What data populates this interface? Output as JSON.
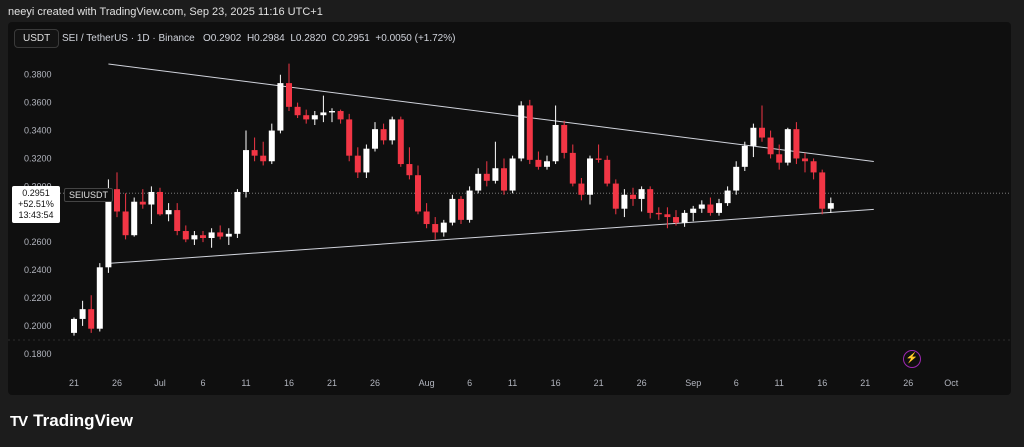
{
  "header": {
    "attribution": "neeyi created with TradingView.com, Sep 23, 2025 11:16 UTC+1"
  },
  "toolbar": {
    "unit_label": "USDT"
  },
  "legend": {
    "symbol": "SEI / TetherUS · 1D · Binance",
    "open": "O0.2902",
    "high": "H0.2984",
    "low": "L0.2820",
    "close": "C0.2951",
    "change": "+0.0050 (+1.72%)"
  },
  "price_tag": {
    "price": "0.2951",
    "pct": "+52.51%",
    "countdown": "13:43:54",
    "symbol": "SEIUSDT"
  },
  "brand": {
    "name": "TradingView",
    "logo": "TV"
  },
  "colors": {
    "up": "#ffffff",
    "down": "#f23645",
    "background": "#0f0f0f",
    "alert": "#9c27b0"
  },
  "chart_data": {
    "type": "candlestick",
    "title": "SEI / TetherUS · 1D · Binance",
    "y_ticks": [
      "0.3800",
      "0.3600",
      "0.3400",
      "0.3200",
      "0.3000",
      "0.2800",
      "0.2600",
      "0.2400",
      "0.2200",
      "0.2000",
      "0.1800"
    ],
    "ylim": [
      0.177,
      0.392
    ],
    "x_ticks": [
      {
        "label": "21",
        "idx": 0
      },
      {
        "label": "26",
        "idx": 5
      },
      {
        "label": "Jul",
        "idx": 10
      },
      {
        "label": "6",
        "idx": 15
      },
      {
        "label": "11",
        "idx": 20
      },
      {
        "label": "16",
        "idx": 25
      },
      {
        "label": "21",
        "idx": 30
      },
      {
        "label": "26",
        "idx": 35
      },
      {
        "label": "Aug",
        "idx": 41
      },
      {
        "label": "6",
        "idx": 46
      },
      {
        "label": "11",
        "idx": 51
      },
      {
        "label": "16",
        "idx": 56
      },
      {
        "label": "21",
        "idx": 61
      },
      {
        "label": "26",
        "idx": 66
      },
      {
        "label": "Sep",
        "idx": 72
      },
      {
        "label": "6",
        "idx": 77
      },
      {
        "label": "11",
        "idx": 82
      },
      {
        "label": "16",
        "idx": 87
      },
      {
        "label": "21",
        "idx": 92
      },
      {
        "label": "26",
        "idx": 97
      },
      {
        "label": "Oct",
        "idx": 102
      }
    ],
    "candles": [
      [
        0.195,
        0.206,
        0.193,
        0.205
      ],
      [
        0.205,
        0.218,
        0.2,
        0.212
      ],
      [
        0.212,
        0.222,
        0.195,
        0.198
      ],
      [
        0.198,
        0.245,
        0.196,
        0.242
      ],
      [
        0.242,
        0.305,
        0.238,
        0.298
      ],
      [
        0.298,
        0.31,
        0.278,
        0.282
      ],
      [
        0.282,
        0.295,
        0.262,
        0.265
      ],
      [
        0.265,
        0.292,
        0.264,
        0.289
      ],
      [
        0.289,
        0.298,
        0.284,
        0.287
      ],
      [
        0.287,
        0.3,
        0.273,
        0.296
      ],
      [
        0.296,
        0.299,
        0.279,
        0.28
      ],
      [
        0.28,
        0.288,
        0.275,
        0.283
      ],
      [
        0.283,
        0.288,
        0.265,
        0.268
      ],
      [
        0.268,
        0.272,
        0.26,
        0.262
      ],
      [
        0.262,
        0.268,
        0.258,
        0.265
      ],
      [
        0.265,
        0.268,
        0.26,
        0.263
      ],
      [
        0.263,
        0.27,
        0.256,
        0.267
      ],
      [
        0.267,
        0.272,
        0.262,
        0.264
      ],
      [
        0.264,
        0.27,
        0.258,
        0.266
      ],
      [
        0.266,
        0.298,
        0.263,
        0.296
      ],
      [
        0.296,
        0.34,
        0.292,
        0.326
      ],
      [
        0.326,
        0.335,
        0.318,
        0.322
      ],
      [
        0.322,
        0.332,
        0.315,
        0.318
      ],
      [
        0.318,
        0.345,
        0.316,
        0.34
      ],
      [
        0.34,
        0.38,
        0.338,
        0.374
      ],
      [
        0.374,
        0.388,
        0.354,
        0.357
      ],
      [
        0.357,
        0.36,
        0.349,
        0.351
      ],
      [
        0.351,
        0.355,
        0.345,
        0.348
      ],
      [
        0.348,
        0.354,
        0.344,
        0.351
      ],
      [
        0.351,
        0.365,
        0.346,
        0.353
      ],
      [
        0.353,
        0.356,
        0.346,
        0.354
      ],
      [
        0.354,
        0.355,
        0.345,
        0.348
      ],
      [
        0.348,
        0.352,
        0.318,
        0.322
      ],
      [
        0.322,
        0.328,
        0.306,
        0.31
      ],
      [
        0.31,
        0.33,
        0.306,
        0.327
      ],
      [
        0.327,
        0.346,
        0.325,
        0.341
      ],
      [
        0.341,
        0.345,
        0.33,
        0.333
      ],
      [
        0.333,
        0.35,
        0.33,
        0.348
      ],
      [
        0.348,
        0.35,
        0.314,
        0.316
      ],
      [
        0.316,
        0.328,
        0.305,
        0.308
      ],
      [
        0.308,
        0.315,
        0.28,
        0.282
      ],
      [
        0.282,
        0.288,
        0.27,
        0.273
      ],
      [
        0.273,
        0.278,
        0.262,
        0.267
      ],
      [
        0.267,
        0.276,
        0.264,
        0.274
      ],
      [
        0.274,
        0.294,
        0.272,
        0.291
      ],
      [
        0.291,
        0.293,
        0.273,
        0.276
      ],
      [
        0.276,
        0.3,
        0.274,
        0.297
      ],
      [
        0.297,
        0.313,
        0.295,
        0.309
      ],
      [
        0.309,
        0.318,
        0.3,
        0.304
      ],
      [
        0.304,
        0.332,
        0.302,
        0.313
      ],
      [
        0.313,
        0.32,
        0.294,
        0.297
      ],
      [
        0.297,
        0.322,
        0.295,
        0.32
      ],
      [
        0.32,
        0.361,
        0.318,
        0.358
      ],
      [
        0.358,
        0.362,
        0.316,
        0.319
      ],
      [
        0.319,
        0.325,
        0.312,
        0.314
      ],
      [
        0.314,
        0.322,
        0.312,
        0.318
      ],
      [
        0.318,
        0.358,
        0.316,
        0.344
      ],
      [
        0.344,
        0.347,
        0.32,
        0.324
      ],
      [
        0.324,
        0.33,
        0.3,
        0.302
      ],
      [
        0.302,
        0.306,
        0.29,
        0.294
      ],
      [
        0.294,
        0.322,
        0.287,
        0.32
      ],
      [
        0.32,
        0.33,
        0.317,
        0.319
      ],
      [
        0.319,
        0.322,
        0.3,
        0.302
      ],
      [
        0.302,
        0.305,
        0.28,
        0.284
      ],
      [
        0.284,
        0.298,
        0.278,
        0.294
      ],
      [
        0.294,
        0.299,
        0.286,
        0.291
      ],
      [
        0.291,
        0.3,
        0.282,
        0.298
      ],
      [
        0.298,
        0.3,
        0.277,
        0.281
      ],
      [
        0.281,
        0.285,
        0.276,
        0.28
      ],
      [
        0.28,
        0.285,
        0.27,
        0.278
      ],
      [
        0.278,
        0.283,
        0.272,
        0.274
      ],
      [
        0.274,
        0.283,
        0.271,
        0.281
      ],
      [
        0.281,
        0.286,
        0.275,
        0.284
      ],
      [
        0.284,
        0.29,
        0.281,
        0.287
      ],
      [
        0.287,
        0.292,
        0.279,
        0.281
      ],
      [
        0.281,
        0.291,
        0.279,
        0.288
      ],
      [
        0.288,
        0.3,
        0.286,
        0.297
      ],
      [
        0.297,
        0.318,
        0.294,
        0.314
      ],
      [
        0.314,
        0.332,
        0.311,
        0.329
      ],
      [
        0.329,
        0.345,
        0.321,
        0.342
      ],
      [
        0.342,
        0.358,
        0.332,
        0.335
      ],
      [
        0.335,
        0.34,
        0.32,
        0.323
      ],
      [
        0.323,
        0.33,
        0.312,
        0.317
      ],
      [
        0.317,
        0.342,
        0.315,
        0.341
      ],
      [
        0.341,
        0.346,
        0.316,
        0.32
      ],
      [
        0.32,
        0.324,
        0.31,
        0.318
      ],
      [
        0.318,
        0.32,
        0.305,
        0.31
      ],
      [
        0.31,
        0.312,
        0.28,
        0.284
      ],
      [
        0.284,
        0.292,
        0.281,
        0.288
      ]
    ],
    "trendlines": [
      {
        "from": [
          4,
          0.3877
        ],
        "to": [
          93,
          0.3178
        ]
      },
      {
        "from": [
          4,
          0.2448
        ],
        "to": [
          93,
          0.2835
        ]
      }
    ],
    "last_price": 0.2951,
    "grid": false
  }
}
